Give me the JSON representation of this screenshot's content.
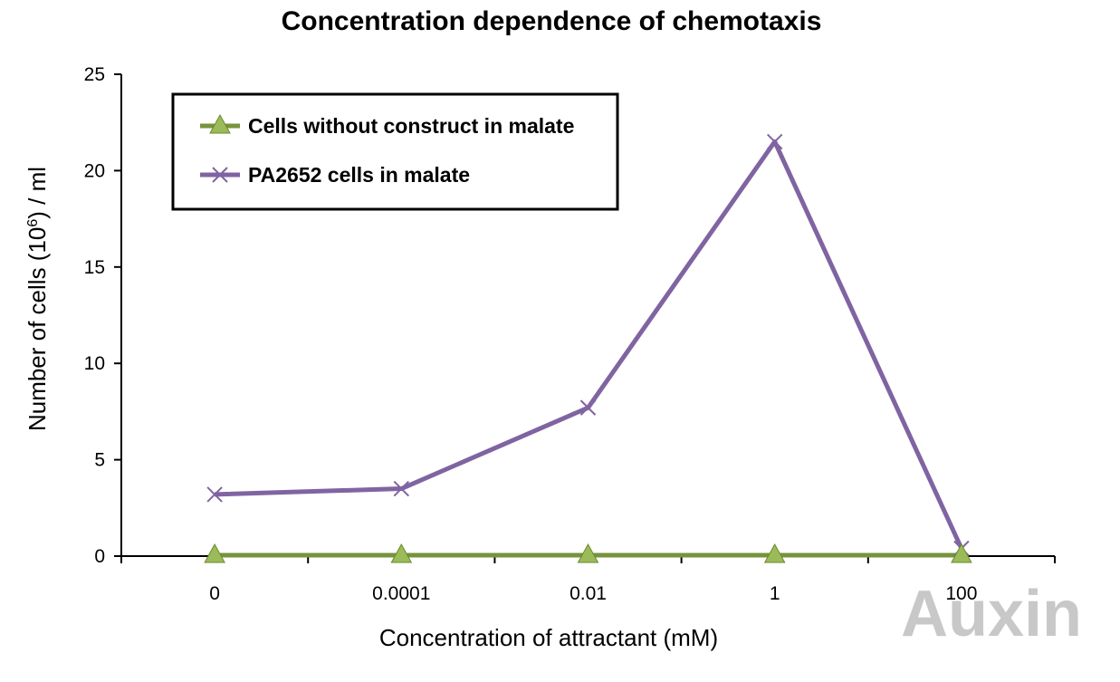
{
  "chart_data": {
    "type": "line",
    "title": "Concentration dependence of chemotaxis",
    "xlabel": "Concentration of attractant (mM)",
    "ylabel_main": "Number of cells (10",
    "ylabel_sup": "6",
    "ylabel_tail": ") / ml",
    "categories": [
      "0",
      "0.0001",
      "0.01",
      "1",
      "100"
    ],
    "ylim": [
      0,
      25
    ],
    "yticks": [
      0,
      5,
      10,
      15,
      20,
      25
    ],
    "grid": false,
    "legend_position": "top-left",
    "series": [
      {
        "name": "Cells without construct in malate",
        "values": [
          0,
          0,
          0,
          0,
          0
        ],
        "color": "#77933c",
        "marker": "triangle",
        "marker_color": "#9bbb59"
      },
      {
        "name": "PA2652 cells in malate",
        "values": [
          3.2,
          3.5,
          7.7,
          21.5,
          0.4
        ],
        "color": "#8064a2",
        "marker": "x",
        "marker_color": "#8064a2"
      }
    ]
  },
  "watermark": "Auxin"
}
